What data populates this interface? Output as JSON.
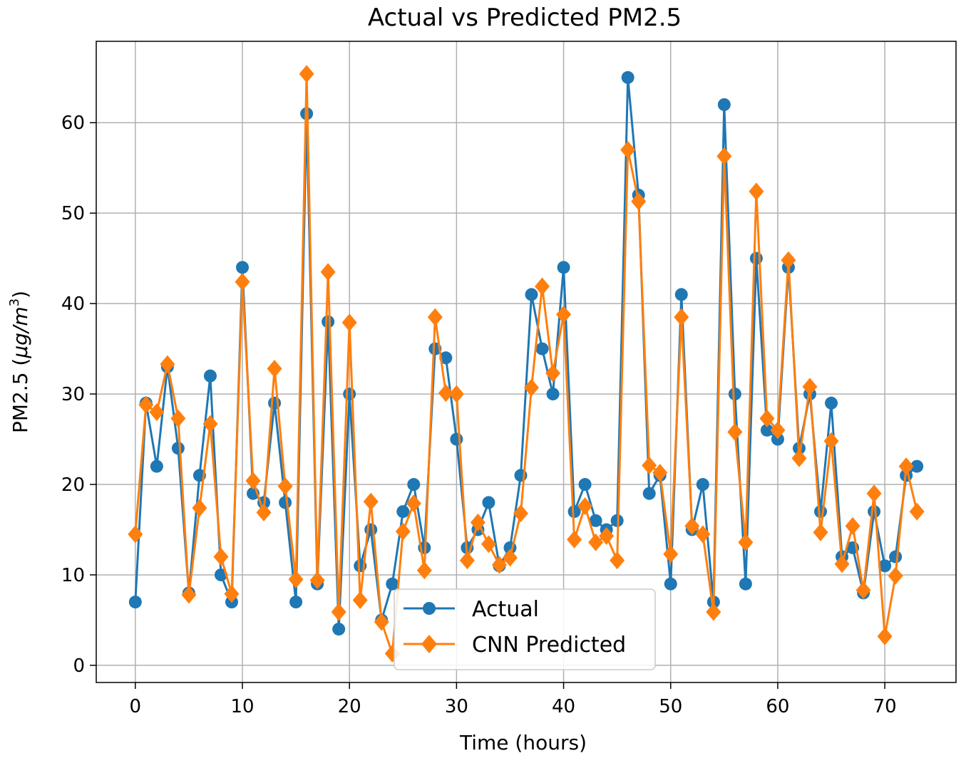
{
  "chart_data": {
    "type": "line",
    "title": "Actual vs Predicted PM2.5",
    "xlabel": "Time (hours)",
    "ylabel": "PM2.5 (μg/m³)",
    "ylabel_parts": {
      "prefix": "PM2.5 (",
      "unit": "μg/m",
      "exp": "3",
      "suffix": ")"
    },
    "xlim": [
      -3.65,
      76.65
    ],
    "ylim": [
      -1.9,
      69
    ],
    "xticks": [
      0,
      10,
      20,
      30,
      40,
      50,
      60,
      70
    ],
    "yticks": [
      0,
      10,
      20,
      30,
      40,
      50,
      60
    ],
    "grid": true,
    "legend_position": "lower center",
    "x": [
      0,
      1,
      2,
      3,
      4,
      5,
      6,
      7,
      8,
      9,
      10,
      11,
      12,
      13,
      14,
      15,
      16,
      17,
      18,
      19,
      20,
      21,
      22,
      23,
      24,
      25,
      26,
      27,
      28,
      29,
      30,
      31,
      32,
      33,
      34,
      35,
      36,
      37,
      38,
      39,
      40,
      41,
      42,
      43,
      44,
      45,
      46,
      47,
      48,
      49,
      50,
      51,
      52,
      53,
      54,
      55,
      56,
      57,
      58,
      59,
      60,
      61,
      62,
      63,
      64,
      65,
      66,
      67,
      68,
      69,
      70,
      71,
      72,
      73
    ],
    "series": [
      {
        "name": "Actual",
        "color": "#1f77b4",
        "marker": "circle",
        "values": [
          7,
          29,
          22,
          33,
          24,
          8,
          21,
          32,
          10,
          7,
          44,
          19,
          18,
          29,
          18,
          7,
          61,
          9,
          38,
          4,
          30,
          11,
          15,
          5,
          9,
          17,
          20,
          13,
          35,
          34,
          25,
          13,
          15,
          18,
          11,
          13,
          21,
          41,
          35,
          30,
          44,
          17,
          20,
          16,
          15,
          16,
          65,
          52,
          19,
          21,
          9,
          41,
          15,
          20,
          7,
          62,
          30,
          9,
          45,
          26,
          25,
          44,
          24,
          30,
          17,
          29,
          12,
          13,
          8,
          17,
          11,
          12,
          21,
          22
        ]
      },
      {
        "name": "CNN Predicted",
        "color": "#ff7f0e",
        "marker": "diamond",
        "values": [
          14.5,
          28.8,
          28,
          33.3,
          27.3,
          7.8,
          17.4,
          26.7,
          12,
          7.9,
          42.4,
          20.4,
          16.9,
          32.8,
          19.8,
          9.5,
          65.4,
          9.4,
          43.5,
          5.9,
          37.9,
          7.2,
          18.1,
          4.8,
          1.3,
          14.8,
          17.9,
          10.5,
          38.5,
          30.1,
          30,
          11.6,
          15.8,
          13.4,
          11.1,
          11.9,
          16.8,
          30.7,
          41.9,
          32.3,
          38.8,
          13.9,
          17.6,
          13.6,
          14.3,
          11.6,
          57,
          51.3,
          22.1,
          21.3,
          12.3,
          38.5,
          15.4,
          14.5,
          5.9,
          56.3,
          25.8,
          13.6,
          52.4,
          27.3,
          26,
          44.8,
          22.9,
          30.8,
          14.7,
          24.8,
          11.2,
          15.4,
          8.3,
          19,
          3.2,
          9.9,
          22,
          17
        ]
      }
    ]
  }
}
